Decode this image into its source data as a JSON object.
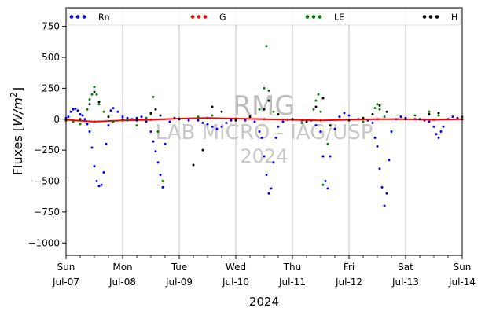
{
  "chart_data": {
    "type": "scatter",
    "title": "",
    "xlabel": "2024",
    "ylabel": "Fluxes [W/m²]",
    "ylim": [
      -1100,
      900
    ],
    "yticks": [
      750,
      500,
      250,
      0,
      -250,
      -500,
      -750,
      -1000
    ],
    "xlim": [
      "2024-07-07",
      "2024-07-14"
    ],
    "xticks": [
      {
        "weekday": "Sun",
        "date": "Jul-07"
      },
      {
        "weekday": "Mon",
        "date": "Jul-08"
      },
      {
        "weekday": "Tue",
        "date": "Jul-09"
      },
      {
        "weekday": "Wed",
        "date": "Jul-10"
      },
      {
        "weekday": "Thu",
        "date": "Jul-11"
      },
      {
        "weekday": "Fri",
        "date": "Jul-12"
      },
      {
        "weekday": "Sat",
        "date": "Jul-13"
      },
      {
        "weekday": "Sun",
        "date": "Jul-14"
      }
    ],
    "grid": "vertical",
    "legend_placement": "top",
    "watermark": [
      "RMG",
      "LAB MICRO - IAG/USP",
      "2024"
    ],
    "series": [
      {
        "name": "Rn",
        "color": "#0000ff",
        "x": [
          "2024-07-07T00:00",
          "2024-07-07T01:00",
          "2024-07-07T02:00",
          "2024-07-07T03:00",
          "2024-07-07T04:00",
          "2024-07-07T05:00",
          "2024-07-07T06:00",
          "2024-07-07T07:00",
          "2024-07-07T08:00",
          "2024-07-07T09:00",
          "2024-07-07T10:00",
          "2024-07-07T11:00",
          "2024-07-07T12:00",
          "2024-07-07T13:00",
          "2024-07-07T14:00",
          "2024-07-07T15:00",
          "2024-07-07T16:00",
          "2024-07-07T17:00",
          "2024-07-07T18:00",
          "2024-07-07T19:00",
          "2024-07-07T20:00",
          "2024-07-07T22:00",
          "2024-07-08T00:00",
          "2024-07-08T02:00",
          "2024-07-08T04:00",
          "2024-07-08T06:00",
          "2024-07-08T08:00",
          "2024-07-08T10:00",
          "2024-07-08T12:00",
          "2024-07-08T13:00",
          "2024-07-08T14:00",
          "2024-07-08T15:00",
          "2024-07-08T16:00",
          "2024-07-08T17:00",
          "2024-07-08T18:00",
          "2024-07-08T20:00",
          "2024-07-08T22:00",
          "2024-07-09T00:00",
          "2024-07-09T04:00",
          "2024-07-09T08:00",
          "2024-07-09T10:00",
          "2024-07-09T12:00",
          "2024-07-09T14:00",
          "2024-07-09T16:00",
          "2024-07-09T18:00",
          "2024-07-09T20:00",
          "2024-07-09T22:00",
          "2024-07-10T00:00",
          "2024-07-10T04:00",
          "2024-07-10T08:00",
          "2024-07-10T10:00",
          "2024-07-10T11:00",
          "2024-07-10T12:00",
          "2024-07-10T13:00",
          "2024-07-10T14:00",
          "2024-07-10T15:00",
          "2024-07-10T16:00",
          "2024-07-10T17:00",
          "2024-07-10T18:00",
          "2024-07-10T20:00",
          "2024-07-10T22:00",
          "2024-07-11T00:00",
          "2024-07-11T04:00",
          "2024-07-11T08:00",
          "2024-07-11T10:00",
          "2024-07-11T12:00",
          "2024-07-11T13:00",
          "2024-07-11T14:00",
          "2024-07-11T15:00",
          "2024-07-11T16:00",
          "2024-07-11T18:00",
          "2024-07-11T20:00",
          "2024-07-11T22:00",
          "2024-07-12T00:00",
          "2024-07-12T04:00",
          "2024-07-12T08:00",
          "2024-07-12T10:00",
          "2024-07-12T11:00",
          "2024-07-12T12:00",
          "2024-07-12T13:00",
          "2024-07-12T14:00",
          "2024-07-12T15:00",
          "2024-07-12T16:00",
          "2024-07-12T17:00",
          "2024-07-12T18:00",
          "2024-07-12T20:00",
          "2024-07-12T22:00",
          "2024-07-13T00:00",
          "2024-07-13T04:00",
          "2024-07-13T08:00",
          "2024-07-13T10:00",
          "2024-07-13T12:00",
          "2024-07-13T13:00",
          "2024-07-13T14:00",
          "2024-07-13T15:00",
          "2024-07-13T16:00",
          "2024-07-13T18:00",
          "2024-07-13T20:00",
          "2024-07-13T22:00",
          "2024-07-14T00:00"
        ],
        "y": [
          10,
          20,
          60,
          80,
          85,
          70,
          40,
          30,
          0,
          -40,
          -100,
          -230,
          -380,
          -500,
          -540,
          -530,
          -430,
          -200,
          -50,
          70,
          90,
          60,
          20,
          10,
          0,
          10,
          20,
          -20,
          -100,
          -180,
          -260,
          -350,
          -450,
          -550,
          -200,
          -20,
          10,
          0,
          -10,
          -10,
          -30,
          -40,
          -60,
          -80,
          -60,
          -30,
          -10,
          0,
          -10,
          -20,
          -100,
          -150,
          -300,
          -450,
          -600,
          -560,
          -350,
          -150,
          -60,
          -20,
          -5,
          0,
          -10,
          -10,
          -50,
          -100,
          -300,
          -500,
          -560,
          -300,
          -80,
          20,
          50,
          30,
          0,
          -10,
          -30,
          -150,
          -220,
          -400,
          -550,
          -700,
          -600,
          -330,
          -100,
          0,
          20,
          10,
          0,
          -10,
          -20,
          -60,
          -120,
          -150,
          -100,
          -60,
          0,
          20,
          10,
          0
        ]
      },
      {
        "name": "G",
        "color": "#ff0000",
        "x": [
          "2024-07-07T00:00",
          "2024-07-07T12:00",
          "2024-07-08T00:00",
          "2024-07-08T12:00",
          "2024-07-09T00:00",
          "2024-07-09T12:00",
          "2024-07-10T00:00",
          "2024-07-10T12:00",
          "2024-07-11T00:00",
          "2024-07-11T12:00",
          "2024-07-12T00:00",
          "2024-07-12T12:00",
          "2024-07-13T00:00",
          "2024-07-13T12:00",
          "2024-07-14T00:00"
        ],
        "y": [
          -5,
          -20,
          -10,
          -5,
          5,
          10,
          5,
          0,
          -5,
          -10,
          -5,
          0,
          0,
          -5,
          0
        ]
      },
      {
        "name": "LE",
        "color": "#008000",
        "x": [
          "2024-07-07T03:00",
          "2024-07-07T06:00",
          "2024-07-07T09:00",
          "2024-07-07T10:00",
          "2024-07-07T11:00",
          "2024-07-07T12:00",
          "2024-07-07T13:00",
          "2024-07-07T14:00",
          "2024-07-07T16:00",
          "2024-07-07T20:00",
          "2024-07-08T02:00",
          "2024-07-08T06:00",
          "2024-07-08T10:00",
          "2024-07-08T12:00",
          "2024-07-08T13:00",
          "2024-07-08T15:00",
          "2024-07-08T17:00",
          "2024-07-09T08:00",
          "2024-07-09T14:00",
          "2024-07-10T06:00",
          "2024-07-10T10:00",
          "2024-07-10T12:00",
          "2024-07-10T13:00",
          "2024-07-10T14:00",
          "2024-07-10T16:00",
          "2024-07-11T04:00",
          "2024-07-11T09:00",
          "2024-07-11T10:00",
          "2024-07-11T11:00",
          "2024-07-11T12:00",
          "2024-07-11T13:00",
          "2024-07-11T15:00",
          "2024-07-12T06:00",
          "2024-07-12T10:00",
          "2024-07-12T11:00",
          "2024-07-12T12:00",
          "2024-07-12T13:00",
          "2024-07-12T15:00",
          "2024-07-13T04:00",
          "2024-07-13T10:00",
          "2024-07-13T14:00",
          "2024-07-14T00:00"
        ],
        "y": [
          -20,
          -40,
          80,
          160,
          200,
          260,
          200,
          120,
          60,
          -20,
          -10,
          -50,
          10,
          40,
          180,
          -100,
          -500,
          20,
          30,
          20,
          80,
          250,
          590,
          230,
          60,
          -30,
          80,
          150,
          200,
          60,
          -530,
          -200,
          -20,
          40,
          90,
          120,
          80,
          20,
          30,
          60,
          30,
          20
        ]
      },
      {
        "name": "H",
        "color": "#000000",
        "x": [
          "2024-07-07T00:00",
          "2024-07-07T06:00",
          "2024-07-07T10:00",
          "2024-07-07T12:00",
          "2024-07-07T14:00",
          "2024-07-07T18:00",
          "2024-07-08T00:00",
          "2024-07-08T06:00",
          "2024-07-08T12:00",
          "2024-07-08T14:00",
          "2024-07-08T16:00",
          "2024-07-09T00:00",
          "2024-07-09T06:00",
          "2024-07-09T10:00",
          "2024-07-09T14:00",
          "2024-07-09T18:00",
          "2024-07-10T00:00",
          "2024-07-10T06:00",
          "2024-07-10T12:00",
          "2024-07-10T14:00",
          "2024-07-10T18:00",
          "2024-07-11T00:00",
          "2024-07-11T06:00",
          "2024-07-11T10:00",
          "2024-07-11T13:00",
          "2024-07-11T16:00",
          "2024-07-12T00:00",
          "2024-07-12T06:00",
          "2024-07-12T10:00",
          "2024-07-12T13:00",
          "2024-07-12T16:00",
          "2024-07-13T00:00",
          "2024-07-13T06:00",
          "2024-07-13T10:00",
          "2024-07-13T14:00",
          "2024-07-14T00:00"
        ],
        "y": [
          -10,
          0,
          120,
          220,
          140,
          20,
          0,
          -10,
          50,
          80,
          30,
          0,
          -370,
          -250,
          100,
          60,
          -10,
          20,
          80,
          150,
          40,
          0,
          -20,
          100,
          170,
          -50,
          -10,
          10,
          40,
          110,
          60,
          0,
          0,
          40,
          50,
          0
        ]
      }
    ]
  }
}
